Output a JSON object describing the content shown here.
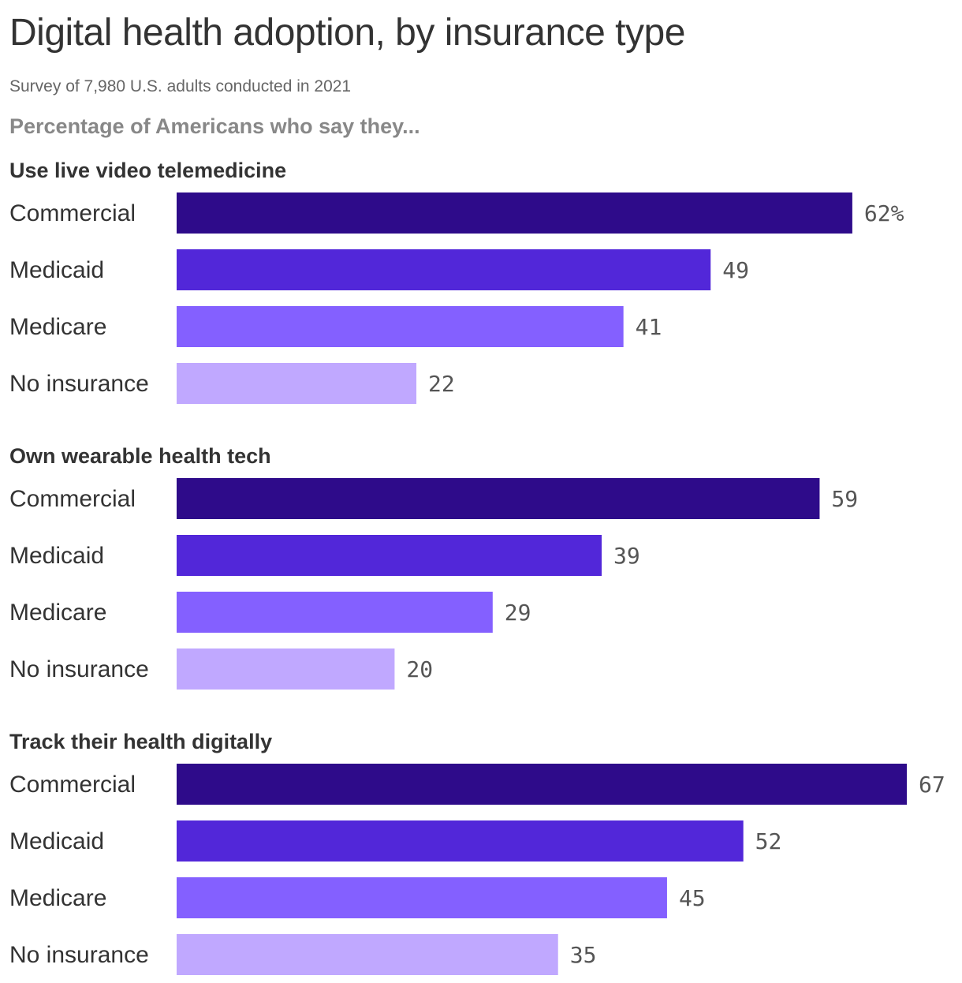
{
  "header": {
    "title": "Digital health adoption, by insurance type",
    "subtitle": "Survey of 7,980 U.S. adults conducted in 2021",
    "intro": "Percentage of Americans who say they..."
  },
  "chart_data": {
    "type": "bar",
    "orientation": "horizontal",
    "unit_suffix": "%",
    "xlim": [
      0,
      67
    ],
    "categories": [
      "Commercial",
      "Medicaid",
      "Medicare",
      "No insurance"
    ],
    "colors": [
      "#2e0b8a",
      "#5227d9",
      "#8460ff",
      "#c0a8ff"
    ],
    "groups": [
      {
        "title": "Use live video telemedicine",
        "values": [
          62,
          49,
          41,
          22
        ]
      },
      {
        "title": "Own wearable health tech",
        "values": [
          59,
          39,
          29,
          20
        ]
      },
      {
        "title": "Track their health digitally",
        "values": [
          67,
          52,
          45,
          35
        ]
      }
    ]
  }
}
